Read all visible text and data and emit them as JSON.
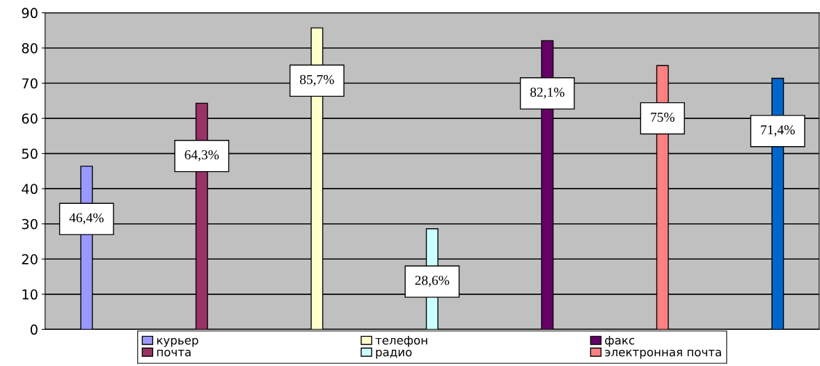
{
  "chart_data": {
    "type": "bar",
    "categories": [
      null,
      null,
      null,
      null,
      null,
      null,
      null
    ],
    "ylim": [
      0,
      90
    ],
    "yticks": [
      0,
      10,
      20,
      30,
      40,
      50,
      60,
      70,
      80,
      90
    ],
    "grid": "y",
    "legend": "bottom",
    "series": [
      {
        "name": "курьер",
        "color": "#9999ff",
        "values": [
          46.4,
          null,
          null,
          null,
          null,
          null,
          null
        ],
        "value_labels": [
          "46,4%",
          null,
          null,
          null,
          null,
          null,
          null
        ]
      },
      {
        "name": "почта",
        "color": "#993366",
        "values": [
          null,
          64.3,
          null,
          null,
          null,
          null,
          null
        ],
        "value_labels": [
          null,
          "64,3%",
          null,
          null,
          null,
          null,
          null
        ]
      },
      {
        "name": "телефон",
        "color": "#ffffcc",
        "values": [
          null,
          null,
          85.7,
          null,
          null,
          null,
          null
        ],
        "value_labels": [
          null,
          null,
          "85,7%",
          null,
          null,
          null,
          null
        ]
      },
      {
        "name": "радио",
        "color": "#ccffff",
        "values": [
          null,
          null,
          null,
          28.6,
          null,
          null,
          null
        ],
        "value_labels": [
          null,
          null,
          null,
          "28,6%",
          null,
          null,
          null
        ]
      },
      {
        "name": "факс",
        "color": "#660066",
        "values": [
          null,
          null,
          null,
          null,
          82.1,
          null,
          null
        ],
        "value_labels": [
          null,
          null,
          null,
          null,
          "82,1%",
          null,
          null
        ]
      },
      {
        "name": "электронная почта",
        "color": "#ff8080",
        "values": [
          null,
          null,
          null,
          null,
          null,
          75,
          null
        ],
        "value_labels": [
          null,
          null,
          null,
          null,
          null,
          "75%",
          null
        ]
      },
      {
        "color": "#0066cc",
        "values": [
          null,
          null,
          null,
          null,
          null,
          null,
          71.4
        ],
        "value_labels": [
          null,
          null,
          null,
          null,
          null,
          null,
          "71,4%"
        ]
      }
    ]
  }
}
